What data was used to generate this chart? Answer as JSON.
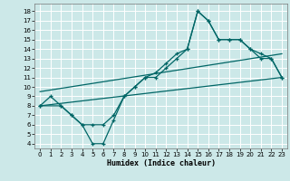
{
  "xlabel": "Humidex (Indice chaleur)",
  "bg_color": "#cce8e8",
  "grid_color": "#aacccc",
  "line_color": "#006666",
  "xlim": [
    -0.5,
    23.5
  ],
  "ylim": [
    3.5,
    18.8
  ],
  "xticks": [
    0,
    1,
    2,
    3,
    4,
    5,
    6,
    7,
    8,
    9,
    10,
    11,
    12,
    13,
    14,
    15,
    16,
    17,
    18,
    19,
    20,
    21,
    22,
    23
  ],
  "yticks": [
    4,
    5,
    6,
    7,
    8,
    9,
    10,
    11,
    12,
    13,
    14,
    15,
    16,
    17,
    18
  ],
  "line1_x": [
    0,
    1,
    2,
    3,
    4,
    5,
    6,
    7,
    8,
    9,
    10,
    11,
    12,
    13,
    14,
    15,
    16,
    17,
    18,
    19,
    20,
    21,
    22,
    23
  ],
  "line1_y": [
    8,
    9,
    8,
    7,
    6,
    6,
    6,
    7,
    9,
    10,
    11,
    11,
    12,
    13,
    14,
    18,
    17,
    15,
    15,
    15,
    14,
    13,
    13,
    11
  ],
  "line2_x": [
    0,
    2,
    3,
    4,
    5,
    6,
    7,
    8,
    9,
    10,
    11,
    12,
    13,
    14,
    15,
    16,
    17,
    18,
    19,
    20,
    21,
    22,
    23
  ],
  "line2_y": [
    8,
    8,
    7,
    6,
    4,
    4,
    6.5,
    9,
    10,
    11,
    11.5,
    12.5,
    13.5,
    14,
    18,
    17,
    15,
    15,
    15,
    14,
    13.5,
    13,
    11
  ],
  "line3_x": [
    0,
    23
  ],
  "line3_y": [
    9.5,
    13.5
  ],
  "line4_x": [
    0,
    23
  ],
  "line4_y": [
    8,
    11
  ]
}
